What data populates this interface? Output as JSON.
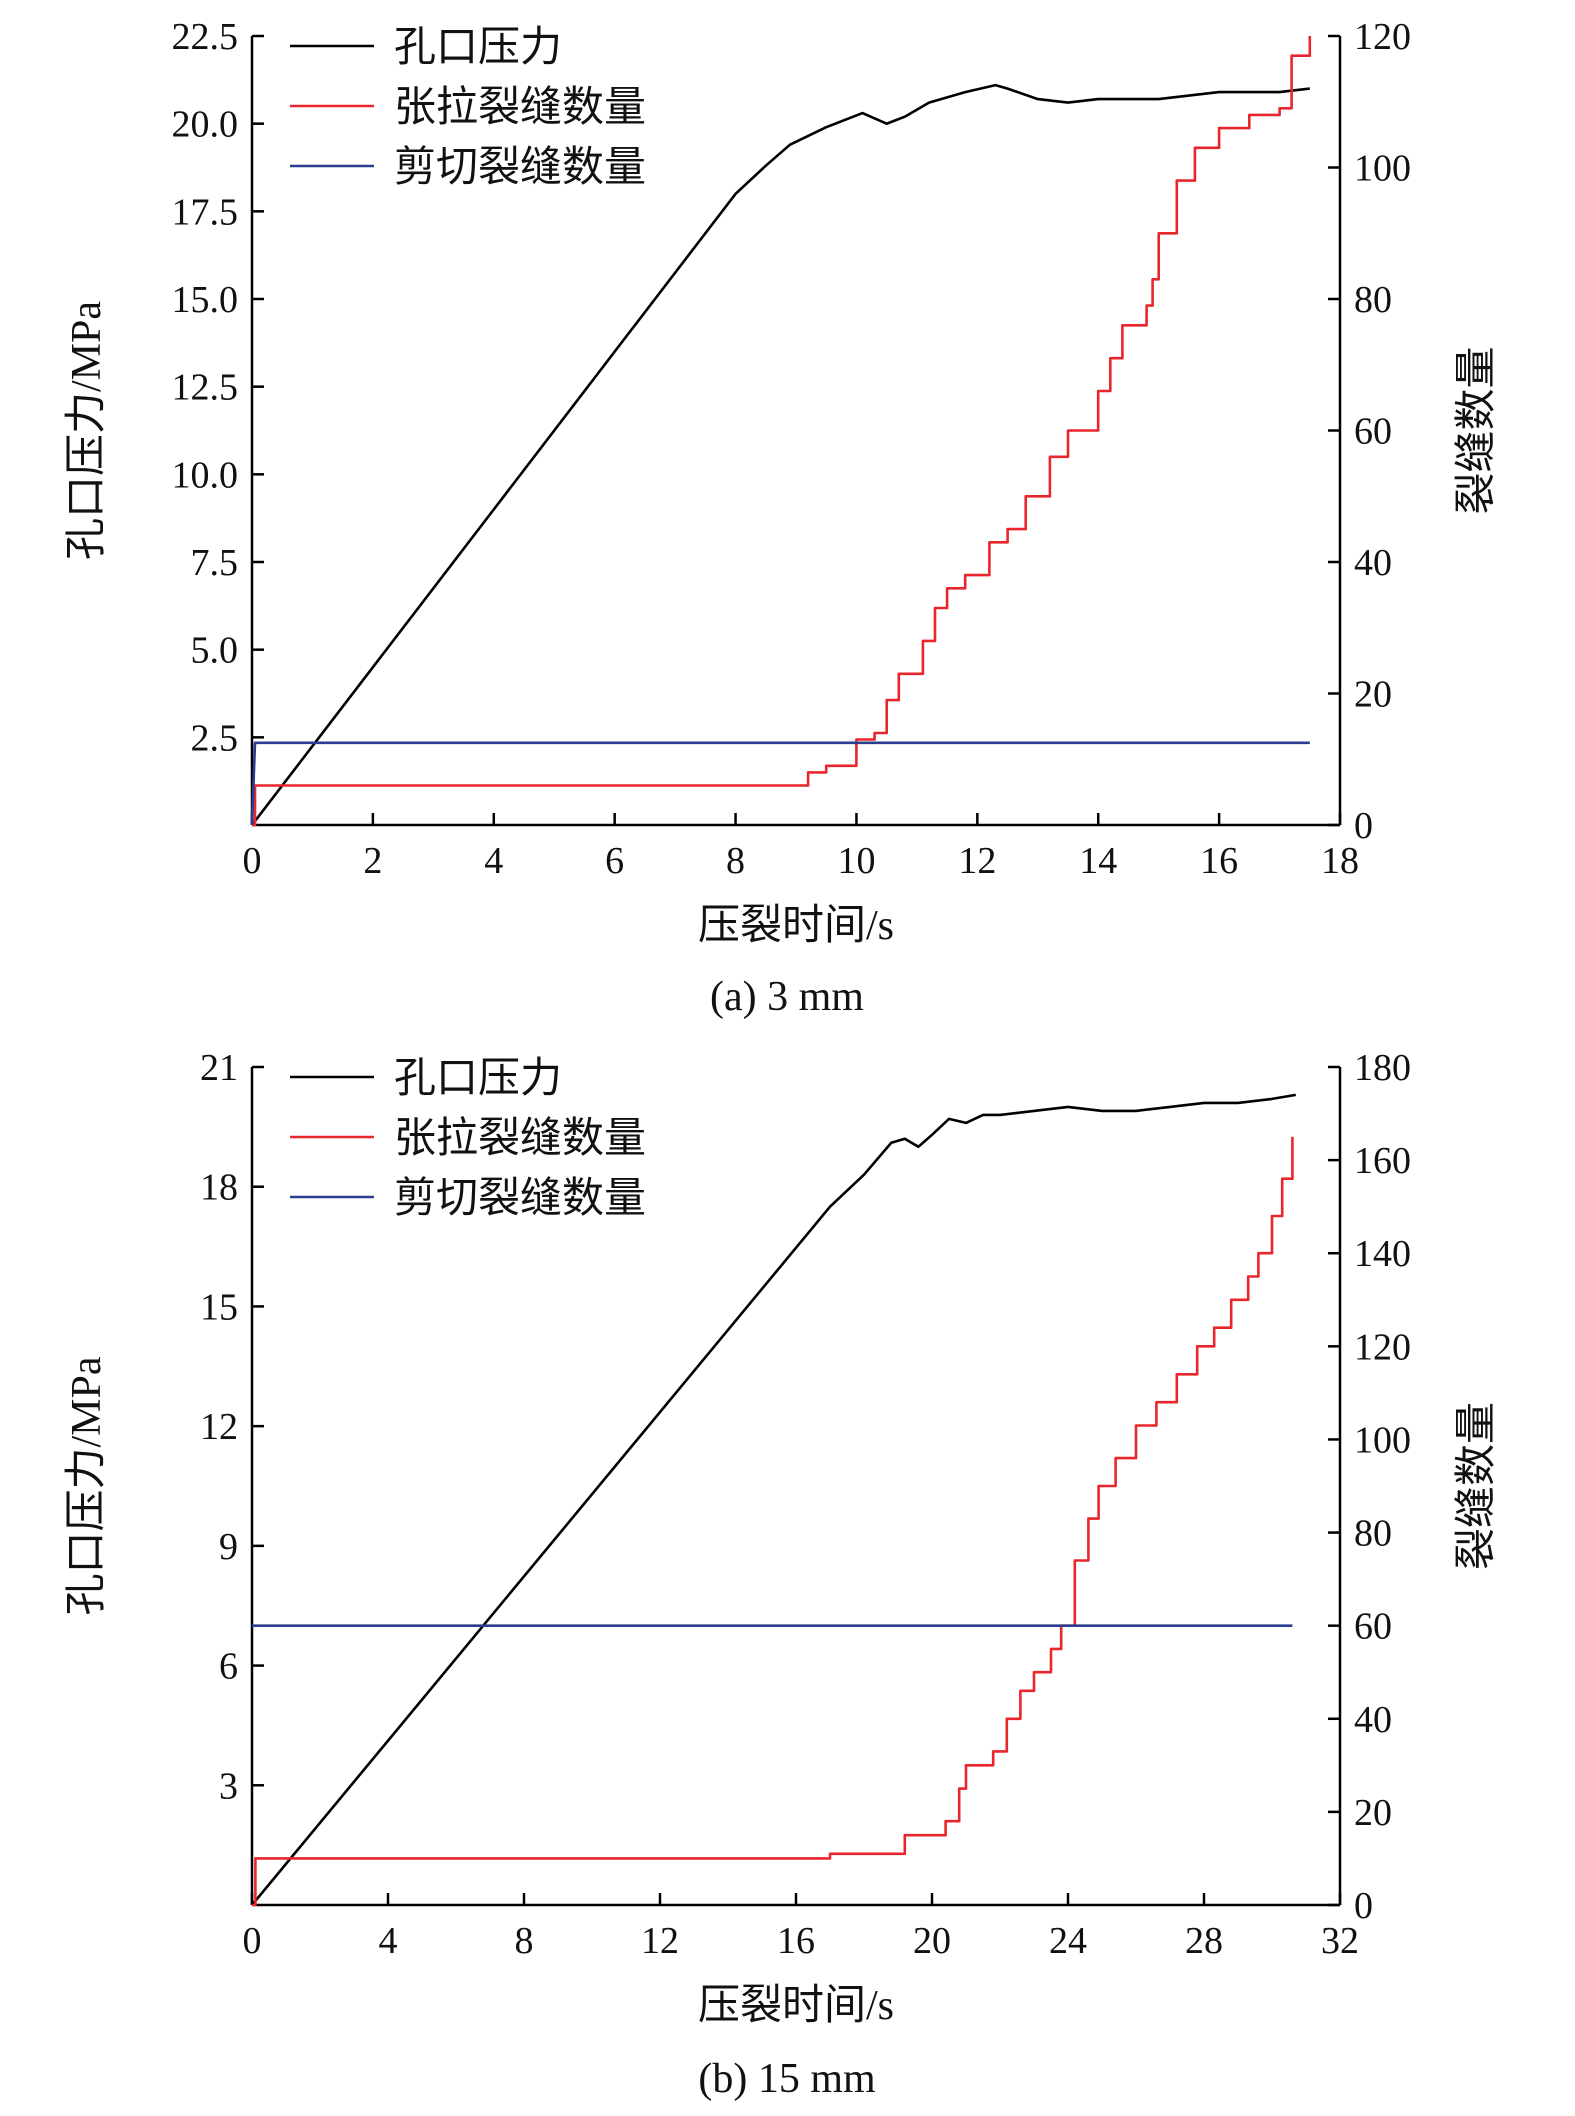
{
  "chart_data": [
    {
      "type": "line",
      "caption": "(a) 3 mm",
      "xlabel": "压裂时间/s",
      "ylabel_left": "孔口压力/MPa",
      "ylabel_right": "裂缝数量",
      "xlim": [
        0,
        18
      ],
      "ylim_left": [
        0,
        22.5
      ],
      "ylim_right": [
        0,
        120
      ],
      "x_ticks": [
        "0",
        "2",
        "4",
        "6",
        "8",
        "10",
        "12",
        "14",
        "16",
        "18"
      ],
      "y_left_ticks": [
        "2.5",
        "5.0",
        "7.5",
        "10.0",
        "12.5",
        "15.0",
        "17.5",
        "20.0",
        "22.5"
      ],
      "y_right_ticks": [
        "0",
        "20",
        "40",
        "60",
        "80",
        "100",
        "120"
      ],
      "legend": {
        "position": "top-left"
      },
      "series": [
        {
          "name": "孔口压力",
          "axis": "left",
          "color": "#000000",
          "x": [
            0,
            8.0,
            8.5,
            8.9,
            9.5,
            10.1,
            10.5,
            10.8,
            11.2,
            11.8,
            12.3,
            12.5,
            13.0,
            13.5,
            14.0,
            14.5,
            15.0,
            15.5,
            16.0,
            16.5,
            17.0,
            17.5
          ],
          "y": [
            0,
            18.0,
            18.8,
            19.4,
            19.9,
            20.3,
            20.0,
            20.2,
            20.6,
            20.9,
            21.1,
            21.0,
            20.7,
            20.6,
            20.7,
            20.7,
            20.7,
            20.8,
            20.9,
            20.9,
            20.9,
            21.0
          ]
        },
        {
          "name": "张拉裂缝数量",
          "axis": "right",
          "color": "#e8262b",
          "step": true,
          "x": [
            0,
            0.05,
            9.0,
            9.2,
            9.5,
            10.0,
            10.3,
            10.5,
            10.7,
            11.1,
            11.3,
            11.5,
            11.8,
            12.2,
            12.5,
            12.8,
            13.2,
            13.5,
            14.0,
            14.2,
            14.4,
            14.8,
            14.9,
            15.0,
            15.3,
            15.6,
            16.0,
            16.5,
            17.0,
            17.2,
            17.5
          ],
          "y": [
            0,
            6,
            6,
            8,
            9,
            13,
            14,
            19,
            23,
            28,
            33,
            36,
            38,
            43,
            45,
            50,
            56,
            60,
            66,
            71,
            76,
            79,
            83,
            90,
            98,
            103,
            106,
            108,
            109,
            117,
            120
          ]
        },
        {
          "name": "剪切裂缝数量",
          "axis": "right",
          "color": "#2b3d8f",
          "x": [
            0,
            0.05,
            17.5
          ],
          "y": [
            0,
            12.5,
            12.5
          ]
        }
      ]
    },
    {
      "type": "line",
      "caption": "(b) 15 mm",
      "xlabel": "压裂时间/s",
      "ylabel_left": "孔口压力/MPa",
      "ylabel_right": "裂缝数量",
      "xlim": [
        0,
        32
      ],
      "ylim_left": [
        0,
        21
      ],
      "ylim_right": [
        0,
        180
      ],
      "x_ticks": [
        "0",
        "4",
        "8",
        "12",
        "16",
        "20",
        "24",
        "28",
        "32"
      ],
      "y_left_ticks": [
        "3",
        "6",
        "9",
        "12",
        "15",
        "18",
        "21"
      ],
      "y_right_ticks": [
        "0",
        "20",
        "40",
        "60",
        "80",
        "100",
        "120",
        "140",
        "160",
        "180"
      ],
      "legend": {
        "position": "top-left"
      },
      "series": [
        {
          "name": "孔口压力",
          "axis": "left",
          "color": "#000000",
          "x": [
            0,
            17.0,
            18.0,
            18.8,
            19.2,
            19.6,
            20.0,
            20.5,
            21.0,
            21.5,
            22.0,
            23.0,
            24.0,
            25.0,
            26.0,
            27.0,
            28.0,
            29.0,
            30.0,
            30.7
          ],
          "y": [
            0,
            17.5,
            18.3,
            19.1,
            19.2,
            19.0,
            19.3,
            19.7,
            19.6,
            19.8,
            19.8,
            19.9,
            20.0,
            19.9,
            19.9,
            20.0,
            20.1,
            20.1,
            20.2,
            20.3
          ]
        },
        {
          "name": "张拉裂缝数量",
          "axis": "right",
          "color": "#e8262b",
          "step": true,
          "x": [
            0,
            0.1,
            4.0,
            17.0,
            19.2,
            20.4,
            20.8,
            21.0,
            21.8,
            22.2,
            22.6,
            23.0,
            23.5,
            23.8,
            24.2,
            24.6,
            24.9,
            25.4,
            26.0,
            26.6,
            27.2,
            27.8,
            28.3,
            28.8,
            29.3,
            29.6,
            30.0,
            30.3,
            30.6
          ],
          "y": [
            0,
            10,
            10,
            11,
            15,
            18,
            25,
            30,
            33,
            40,
            46,
            50,
            55,
            60,
            74,
            83,
            90,
            96,
            103,
            108,
            114,
            120,
            124,
            130,
            135,
            140,
            148,
            156,
            165
          ]
        },
        {
          "name": "剪切裂缝数量",
          "axis": "right",
          "color": "#2b3d8f",
          "x": [
            0,
            30.6
          ],
          "y": [
            60,
            60
          ]
        }
      ]
    }
  ]
}
